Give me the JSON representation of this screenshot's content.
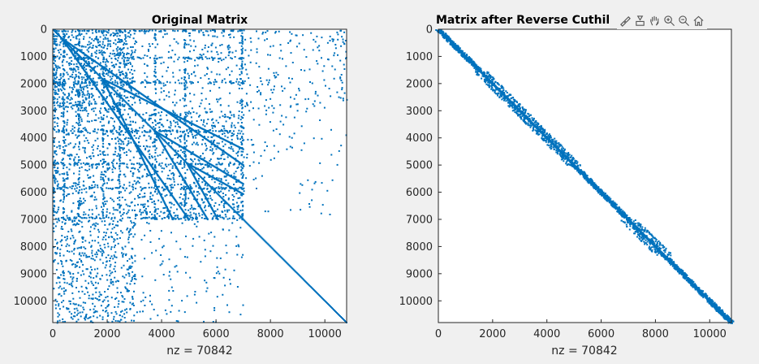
{
  "figure": {
    "toolbar": {
      "icons": [
        "brush-icon",
        "datatip-icon",
        "pan-icon",
        "zoom-in-icon",
        "zoom-out-icon",
        "home-icon"
      ]
    }
  },
  "chart_data": [
    {
      "type": "scatter",
      "title": "Original Matrix",
      "xlabel": "nz = 70842",
      "ylabel": "",
      "xlim": [
        0,
        10800
      ],
      "ylim": [
        0,
        10800
      ],
      "y_reversed": true,
      "x_ticks": [
        "0",
        "2000",
        "4000",
        "6000",
        "8000",
        "10000"
      ],
      "y_ticks": [
        "0",
        "1000",
        "2000",
        "3000",
        "4000",
        "5000",
        "6000",
        "7000",
        "8000",
        "9000",
        "10000"
      ],
      "color": "#0072bd",
      "pattern": "scattered sparse blocks; dense diagonal segments on [0, 7000]; single diagonal on [7000, 10800]"
    },
    {
      "type": "scatter",
      "title": "Matrix after Reverse Cuthil",
      "xlabel": "nz = 70842",
      "ylabel": "",
      "xlim": [
        0,
        10800
      ],
      "ylim": [
        0,
        10800
      ],
      "y_reversed": true,
      "x_ticks": [
        "0",
        "2000",
        "4000",
        "6000",
        "8000",
        "10000"
      ],
      "y_ticks": [
        "0",
        "1000",
        "2000",
        "3000",
        "4000",
        "5000",
        "6000",
        "7000",
        "8000",
        "9000",
        "10000"
      ],
      "color": "#0072bd",
      "pattern": "narrow band around the main diagonal"
    }
  ]
}
